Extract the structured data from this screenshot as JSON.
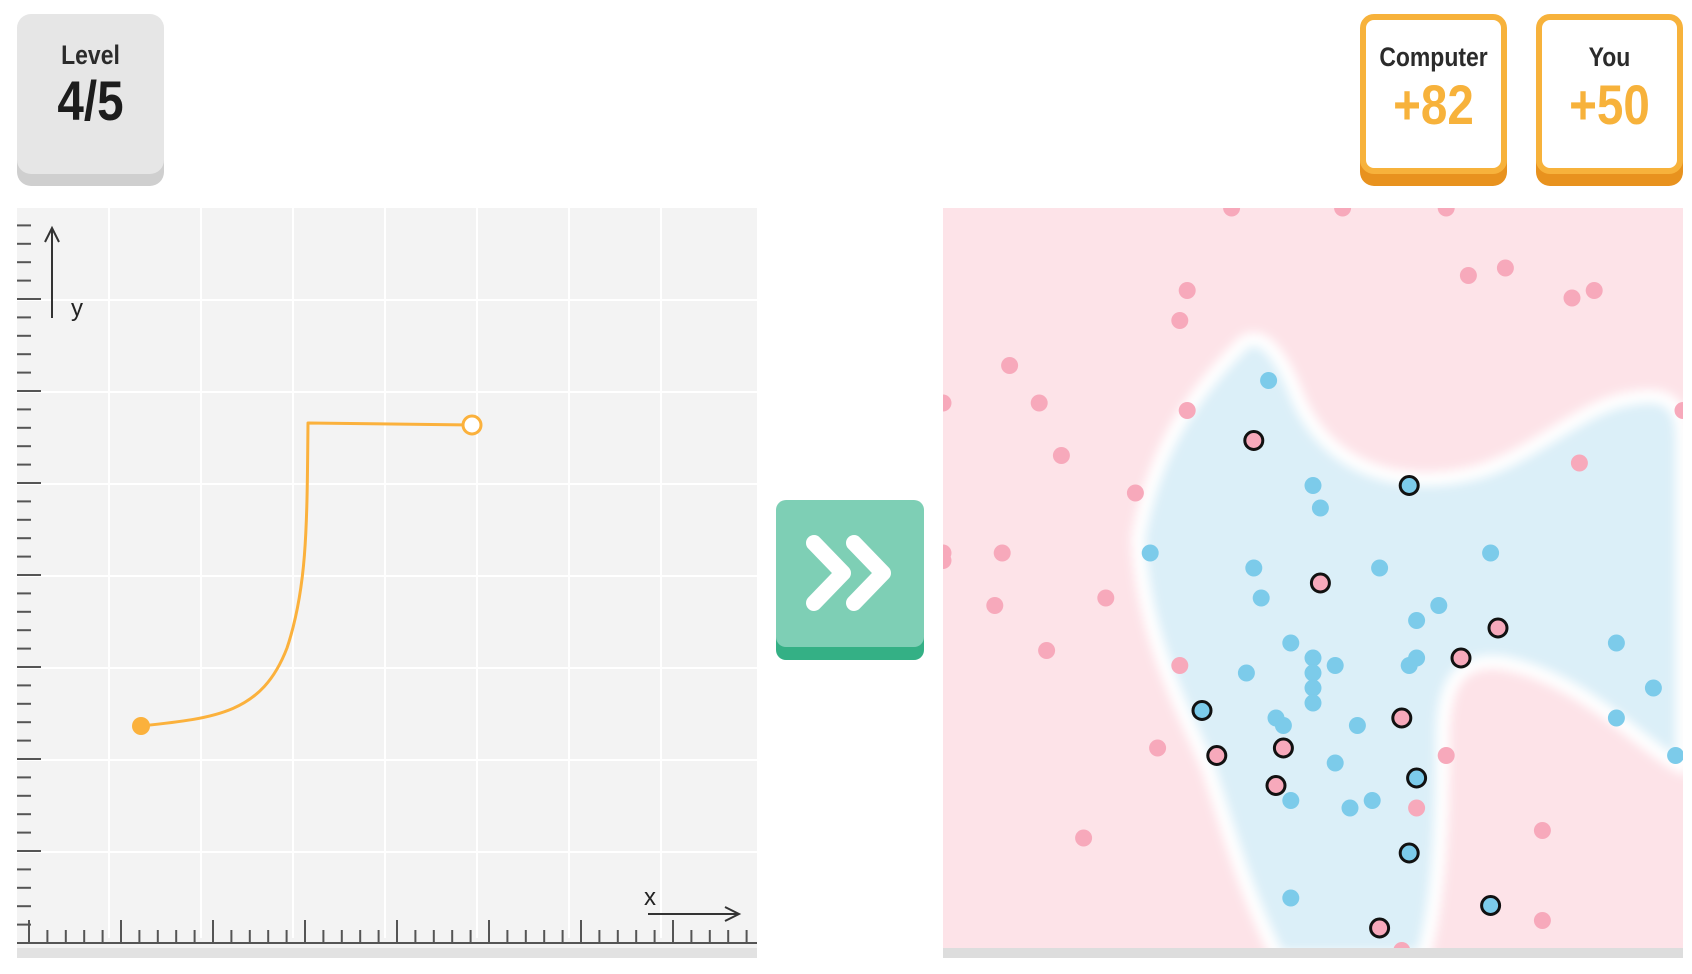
{
  "level": {
    "label": "Level",
    "value": "4/5"
  },
  "scores": [
    {
      "label": "Computer",
      "value": "+82"
    },
    {
      "label": "You",
      "value": "+50"
    }
  ],
  "graph": {
    "x_label": "x",
    "y_label": "y",
    "curve_color": "#fbb13c",
    "background": "#f3f3f3"
  },
  "next_button": {
    "icon": "double-chevron-right-icon",
    "color": "#7ecfb5",
    "shadow": "#34b085"
  },
  "classification": {
    "colors": {
      "pink_region": "#fde3e8",
      "blue_region": "#dbeff8",
      "pink_point": "#f7a9bb",
      "blue_point": "#7ccbea",
      "outline": "#111111"
    },
    "pink_points": [
      [
        0.39,
        0.0
      ],
      [
        0.54,
        0.0
      ],
      [
        0.68,
        0.0
      ],
      [
        0.71,
        0.09
      ],
      [
        0.76,
        0.08
      ],
      [
        0.85,
        0.12
      ],
      [
        0.88,
        0.11
      ],
      [
        0.33,
        0.11
      ],
      [
        0.32,
        0.15
      ],
      [
        0.09,
        0.21
      ],
      [
        0.13,
        0.26
      ],
      [
        0.0,
        0.26
      ],
      [
        0.33,
        0.27
      ],
      [
        0.16,
        0.33
      ],
      [
        0.86,
        0.34
      ],
      [
        0.26,
        0.38
      ],
      [
        0.0,
        0.46
      ],
      [
        0.0,
        0.47
      ],
      [
        0.08,
        0.46
      ],
      [
        0.07,
        0.53
      ],
      [
        0.22,
        0.52
      ],
      [
        0.14,
        0.59
      ],
      [
        0.32,
        0.61
      ],
      [
        0.29,
        0.72
      ],
      [
        0.68,
        0.73
      ],
      [
        0.19,
        0.84
      ],
      [
        0.64,
        0.8
      ],
      [
        0.81,
        0.83
      ],
      [
        0.81,
        0.95
      ],
      [
        0.62,
        0.99
      ],
      [
        1.0,
        0.27
      ]
    ],
    "blue_points": [
      [
        0.44,
        0.23
      ],
      [
        0.5,
        0.37
      ],
      [
        0.51,
        0.4
      ],
      [
        0.28,
        0.46
      ],
      [
        0.42,
        0.48
      ],
      [
        0.59,
        0.48
      ],
      [
        0.74,
        0.46
      ],
      [
        0.43,
        0.52
      ],
      [
        0.67,
        0.53
      ],
      [
        0.64,
        0.55
      ],
      [
        0.47,
        0.58
      ],
      [
        0.5,
        0.6
      ],
      [
        0.53,
        0.61
      ],
      [
        0.41,
        0.62
      ],
      [
        0.5,
        0.62
      ],
      [
        0.5,
        0.64
      ],
      [
        0.5,
        0.66
      ],
      [
        0.63,
        0.61
      ],
      [
        0.64,
        0.6
      ],
      [
        0.91,
        0.58
      ],
      [
        0.96,
        0.64
      ],
      [
        0.45,
        0.68
      ],
      [
        0.46,
        0.69
      ],
      [
        0.56,
        0.69
      ],
      [
        0.91,
        0.68
      ],
      [
        0.99,
        0.73
      ],
      [
        0.53,
        0.74
      ],
      [
        0.37,
        0.73
      ],
      [
        0.47,
        0.79
      ],
      [
        0.55,
        0.8
      ],
      [
        0.58,
        0.79
      ],
      [
        0.47,
        0.92
      ]
    ],
    "outlined_pink_points": [
      [
        0.42,
        0.31
      ],
      [
        0.51,
        0.5
      ],
      [
        0.75,
        0.56
      ],
      [
        0.7,
        0.6
      ],
      [
        0.62,
        0.68
      ],
      [
        0.46,
        0.72
      ],
      [
        0.37,
        0.73
      ],
      [
        0.45,
        0.77
      ],
      [
        0.59,
        0.96
      ]
    ],
    "outlined_blue_points": [
      [
        0.63,
        0.37
      ],
      [
        0.35,
        0.67
      ],
      [
        0.64,
        0.76
      ],
      [
        0.63,
        0.86
      ],
      [
        0.74,
        0.93
      ]
    ]
  }
}
